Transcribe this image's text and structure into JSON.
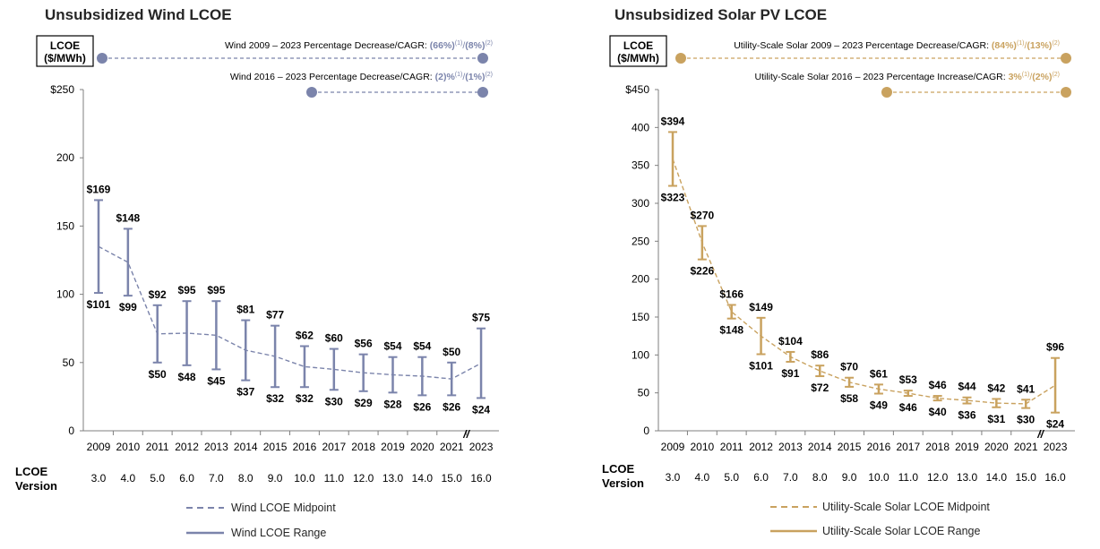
{
  "chart_data": [
    {
      "type": "line",
      "title": "Unsubsidized Wind LCOE",
      "ylabel": "LCOE ($/MWh)",
      "ylim": [
        0,
        250
      ],
      "yticks": [
        "$250",
        "200",
        "150",
        "100",
        "50",
        "0"
      ],
      "x": [
        "2009",
        "2010",
        "2011",
        "2012",
        "2013",
        "2014",
        "2015",
        "2016",
        "2017",
        "2018",
        "2019",
        "2020",
        "2021",
        "2023"
      ],
      "version_label": "LCOE Version",
      "versions": [
        "3.0",
        "4.0",
        "5.0",
        "6.0",
        "7.0",
        "8.0",
        "9.0",
        "10.0",
        "11.0",
        "12.0",
        "13.0",
        "14.0",
        "15.0",
        "16.0"
      ],
      "high": [
        169,
        148,
        92,
        95,
        95,
        81,
        77,
        62,
        60,
        56,
        54,
        54,
        50,
        75
      ],
      "low": [
        101,
        99,
        50,
        48,
        45,
        37,
        32,
        32,
        30,
        29,
        28,
        26,
        26,
        24
      ],
      "high_labels": [
        "$169",
        "$148",
        "$92",
        "$95",
        "$95",
        "$81",
        "$77",
        "$62",
        "$60",
        "$56",
        "$54",
        "$54",
        "$50",
        "$75"
      ],
      "low_labels": [
        "$101",
        "$99",
        "$50",
        "$48",
        "$45",
        "$37",
        "$32",
        "$32",
        "$30",
        "$29",
        "$28",
        "$26",
        "$26",
        "$24"
      ],
      "series": [
        {
          "name": "Wind LCOE Midpoint",
          "values": [
            135,
            123.5,
            71,
            71.5,
            70,
            59,
            54.5,
            47,
            45,
            42.5,
            41,
            40,
            38,
            49.5
          ]
        },
        {
          "name": "Wind LCOE Range"
        }
      ],
      "notes": [
        {
          "text": "Wind 2009 – 2023 Percentage Decrease/CAGR: ",
          "value": "(66%)",
          "sup1": "(1)",
          "sep": "/",
          "value2": "(8%)",
          "sup2": "(2)",
          "from": "2009",
          "to": "2023"
        },
        {
          "text": "Wind 2016 – 2023 Percentage Decrease/CAGR: ",
          "value": "(2)%",
          "sup1": "(1)",
          "sep": "/",
          "value2": "(1%)",
          "sup2": "(2)",
          "from": "2016",
          "to": "2023"
        }
      ],
      "break_marker": "//",
      "colors": {
        "range": "#7b84ab",
        "mid": "#7b84ab",
        "note_value": "#7b84ab"
      }
    },
    {
      "type": "line",
      "title": "Unsubsidized Solar PV LCOE",
      "ylabel": "LCOE ($/MWh)",
      "ylim": [
        0,
        450
      ],
      "yticks": [
        "$450",
        "400",
        "350",
        "300",
        "250",
        "200",
        "150",
        "100",
        "50",
        "0"
      ],
      "x": [
        "2009",
        "2010",
        "2011",
        "2012",
        "2013",
        "2014",
        "2015",
        "2016",
        "2017",
        "2018",
        "2019",
        "2020",
        "2021",
        "2023"
      ],
      "version_label": "LCOE Version",
      "versions": [
        "3.0",
        "4.0",
        "5.0",
        "6.0",
        "7.0",
        "8.0",
        "9.0",
        "10.0",
        "11.0",
        "12.0",
        "13.0",
        "14.0",
        "15.0",
        "16.0"
      ],
      "high": [
        394,
        270,
        166,
        149,
        104,
        86,
        70,
        61,
        53,
        46,
        44,
        42,
        41,
        96
      ],
      "low": [
        323,
        226,
        148,
        101,
        91,
        72,
        58,
        49,
        46,
        40,
        36,
        31,
        30,
        24
      ],
      "high_labels": [
        "$394",
        "$270",
        "$166",
        "$149",
        "$104",
        "$86",
        "$70",
        "$61",
        "$53",
        "$46",
        "$44",
        "$42",
        "$41",
        "$96"
      ],
      "low_labels": [
        "$323",
        "$226",
        "$148",
        "$101",
        "$91",
        "$72",
        "$58",
        "$49",
        "$46",
        "$40",
        "$36",
        "$31",
        "$30",
        "$24"
      ],
      "series": [
        {
          "name": "Utility-Scale Solar LCOE Midpoint",
          "values": [
            358.5,
            248,
            157,
            125,
            97.5,
            79,
            64,
            55,
            49.5,
            43,
            40,
            36.5,
            35.5,
            60
          ]
        },
        {
          "name": "Utility-Scale Solar LCOE Range"
        }
      ],
      "notes": [
        {
          "text": "Utility-Scale Solar 2009 – 2023 Percentage Decrease/CAGR: ",
          "value": "(84%)",
          "sup1": "(1)",
          "sep": "/",
          "value2": "(13%)",
          "sup2": "(2)",
          "from": "2009",
          "to": "2023"
        },
        {
          "text": "Utility-Scale Solar 2016 – 2023 Percentage Increase/CAGR: ",
          "value": "3%",
          "sup1": "(1)",
          "sep": "/",
          "value2": "(2%)",
          "sup2": "(2)",
          "from": "2016",
          "to": "2023"
        }
      ],
      "break_marker": "//",
      "colors": {
        "range": "#c9a25f",
        "mid": "#c9a25f",
        "note_value": "#c9a25f"
      }
    }
  ]
}
